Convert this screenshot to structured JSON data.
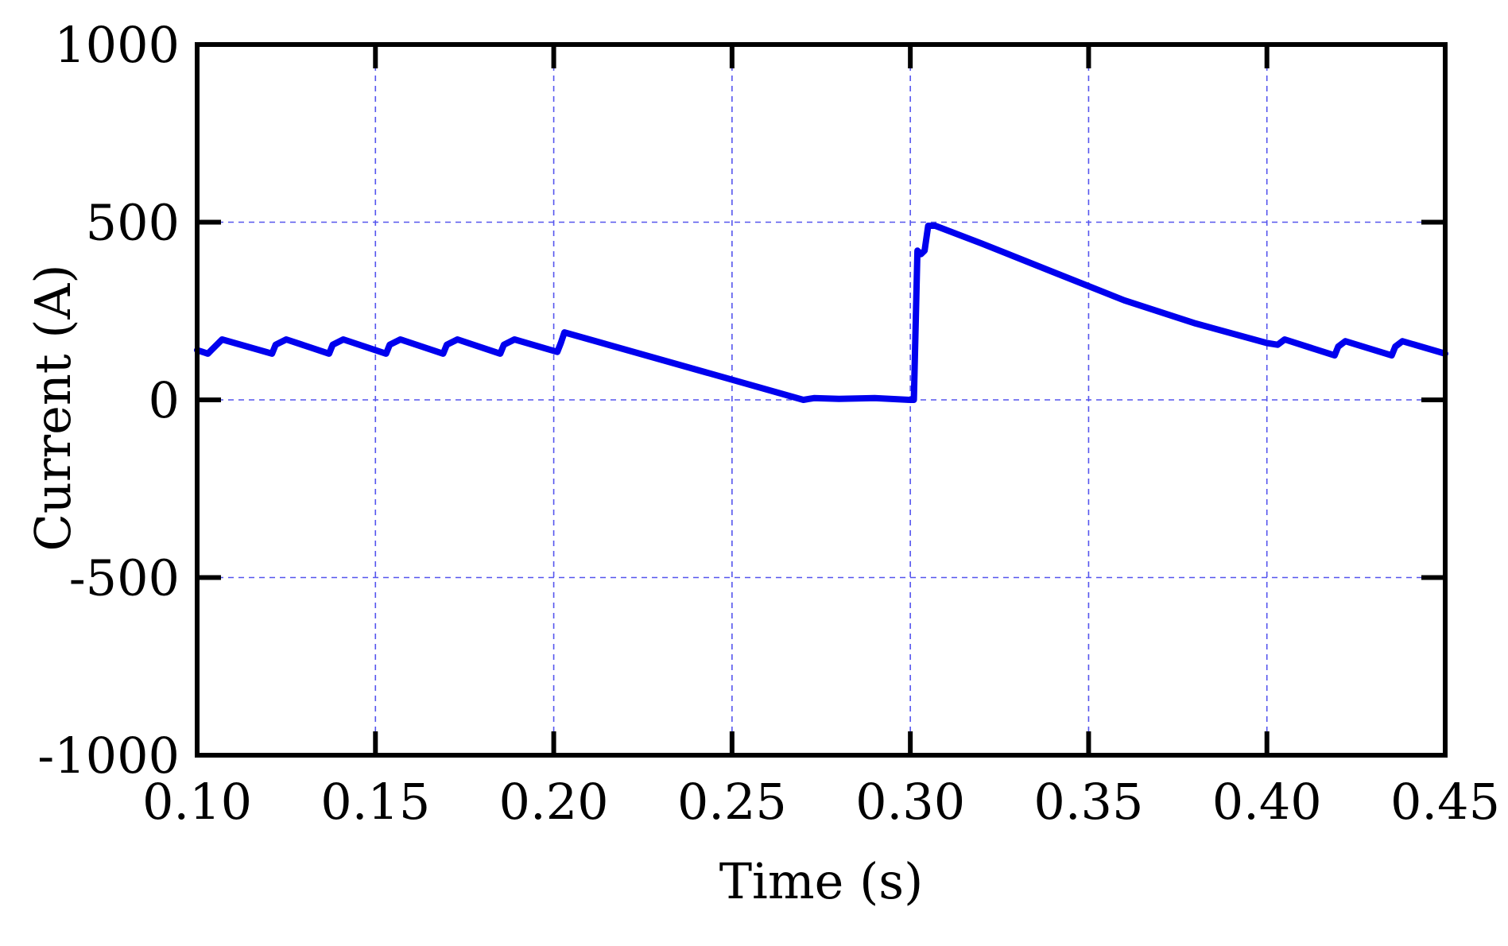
{
  "chart_data": {
    "type": "line",
    "title": "",
    "xlabel": "Time (s)",
    "ylabel": "Current (A)",
    "xlim": [
      0.1,
      0.45
    ],
    "ylim": [
      -1000,
      1000
    ],
    "x_ticks": [
      "0.10",
      "0.15",
      "0.20",
      "0.25",
      "0.30",
      "0.35",
      "0.40",
      "0.45"
    ],
    "y_ticks": [
      "1000",
      "500",
      "0",
      "-500",
      "-1000"
    ],
    "grid": true,
    "line_color": "#0000ee",
    "grid_color": "#5555ee",
    "series": [
      {
        "x": [
          0.1,
          0.103,
          0.104,
          0.107,
          0.121,
          0.122,
          0.125,
          0.137,
          0.138,
          0.141,
          0.153,
          0.154,
          0.157,
          0.169,
          0.17,
          0.173,
          0.185,
          0.186,
          0.189,
          0.201,
          0.202,
          0.203,
          0.27,
          0.273,
          0.28,
          0.29,
          0.3,
          0.301,
          0.302,
          0.303,
          0.304,
          0.305,
          0.307,
          0.32,
          0.34,
          0.36,
          0.38,
          0.4,
          0.403,
          0.405,
          0.419,
          0.42,
          0.422,
          0.435,
          0.436,
          0.438,
          0.45
        ],
        "y": [
          140,
          130,
          140,
          170,
          130,
          155,
          170,
          130,
          155,
          170,
          130,
          155,
          170,
          130,
          155,
          170,
          130,
          155,
          170,
          135,
          160,
          190,
          0,
          5,
          3,
          5,
          0,
          0,
          420,
          410,
          420,
          490,
          490,
          440,
          360,
          280,
          215,
          160,
          155,
          170,
          125,
          150,
          165,
          125,
          150,
          165,
          130
        ]
      }
    ]
  }
}
